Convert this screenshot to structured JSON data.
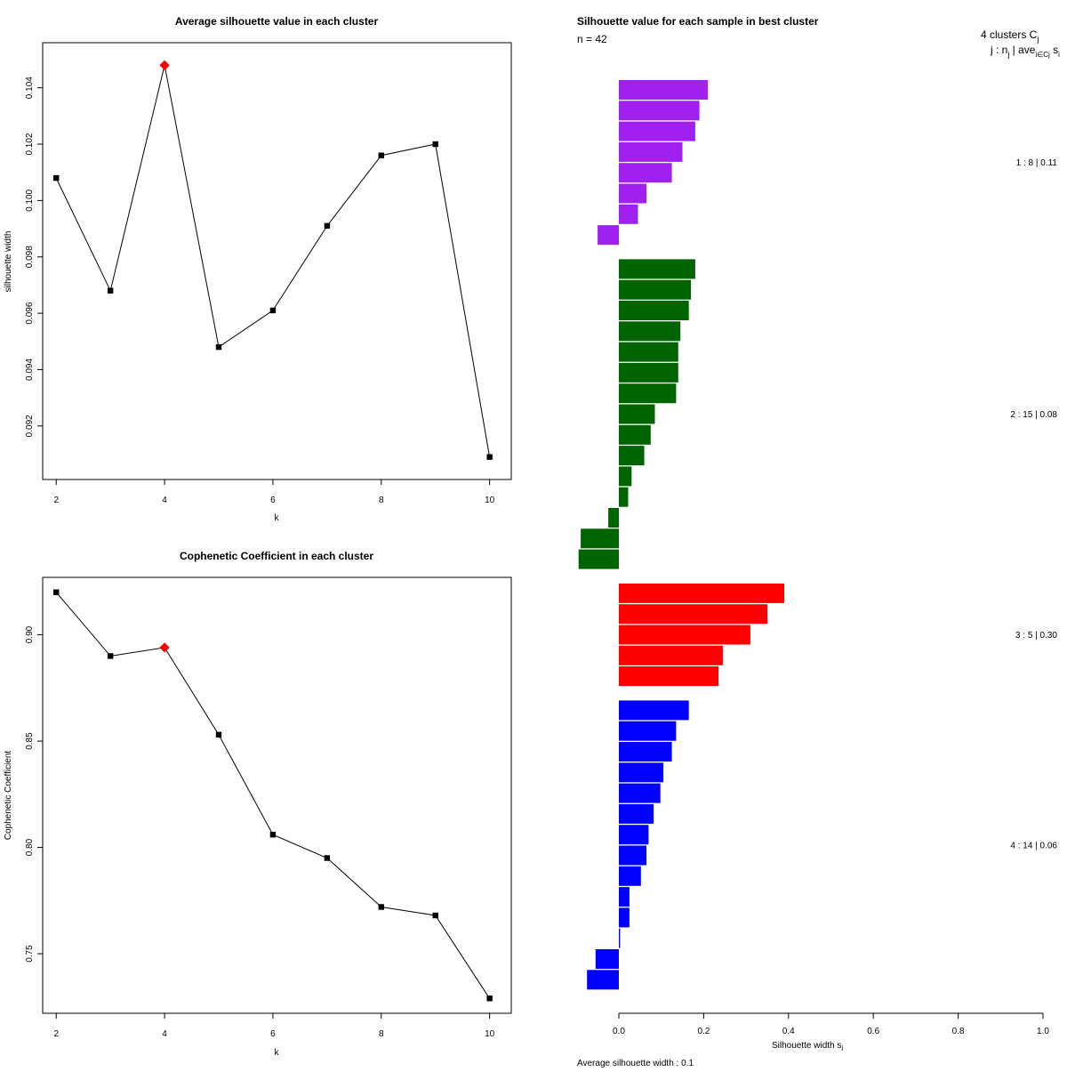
{
  "chart_data": [
    {
      "type": "line",
      "title": "Average silhouette value in each cluster",
      "xlabel": "k",
      "ylabel": "silhouette width",
      "x": [
        2,
        3,
        4,
        5,
        6,
        7,
        8,
        9,
        10
      ],
      "y": [
        0.1008,
        0.0968,
        0.1048,
        0.0948,
        0.0961,
        0.0991,
        0.1016,
        0.102,
        0.0909
      ],
      "highlight_index": 2,
      "highlight_color": "#ff0000",
      "xlim": [
        1.75,
        10.4
      ],
      "ylim": [
        0.0901,
        0.1056
      ],
      "xticks": [
        "2",
        "4",
        "6",
        "8",
        "10"
      ],
      "yticks": [
        "0.092",
        "0.094",
        "0.096",
        "0.098",
        "0.100",
        "0.102",
        "0.104"
      ]
    },
    {
      "type": "line",
      "title": "Cophenetic Coefficient in each cluster",
      "xlabel": "k",
      "ylabel": "Cophenetic Coefficient",
      "x": [
        2,
        3,
        4,
        5,
        6,
        7,
        8,
        9,
        10
      ],
      "y": [
        0.92,
        0.89,
        0.894,
        0.853,
        0.806,
        0.795,
        0.772,
        0.768,
        0.729
      ],
      "highlight_index": 2,
      "highlight_color": "#ff0000",
      "xlim": [
        1.75,
        10.4
      ],
      "ylim": [
        0.722,
        0.927
      ],
      "xticks": [
        "2",
        "4",
        "6",
        "8",
        "10"
      ],
      "yticks": [
        "0.75",
        "0.80",
        "0.85",
        "0.90"
      ]
    },
    {
      "type": "bar",
      "orientation": "horizontal",
      "title": "Silhouette value for each sample in best cluster",
      "n_label": "n = 42",
      "legend_header": "4 clusters C",
      "legend_header_sub": "j",
      "legend_subheader": "j :  n",
      "legend_subheader_sub": "j",
      "legend_subheader_mid": " | ave",
      "legend_subheader_sub2": "i∈Cj",
      "legend_subheader_tail": " s",
      "legend_subheader_sub3": "i",
      "xlabel": "Silhouette width s",
      "xlabel_sub": "i",
      "xlim": [
        0,
        1
      ],
      "xticks": [
        "0.0",
        "0.2",
        "0.4",
        "0.6",
        "0.8",
        "1.0"
      ],
      "footer": "Average silhouette width :  0.1",
      "clusters": [
        {
          "label": "1 :   8  |  0.11",
          "color": "#a020f0",
          "values": [
            0.21,
            0.19,
            0.18,
            0.15,
            0.125,
            0.065,
            0.045,
            -0.05
          ]
        },
        {
          "label": "2 :   15  |  0.08",
          "color": "#006400",
          "values": [
            0.18,
            0.17,
            0.165,
            0.145,
            0.14,
            0.14,
            0.135,
            0.085,
            0.075,
            0.06,
            0.03,
            0.022,
            -0.025,
            -0.09,
            -0.095
          ]
        },
        {
          "label": "3 :   5  |  0.30",
          "color": "#ff0000",
          "values": [
            0.39,
            0.35,
            0.31,
            0.245,
            0.235
          ]
        },
        {
          "label": "4 :   14  |  0.06",
          "color": "#0000ff",
          "values": [
            0.165,
            0.135,
            0.125,
            0.105,
            0.098,
            0.082,
            0.07,
            0.065,
            0.052,
            0.025,
            0.025,
            0.003,
            -0.055,
            -0.075
          ]
        }
      ]
    }
  ]
}
